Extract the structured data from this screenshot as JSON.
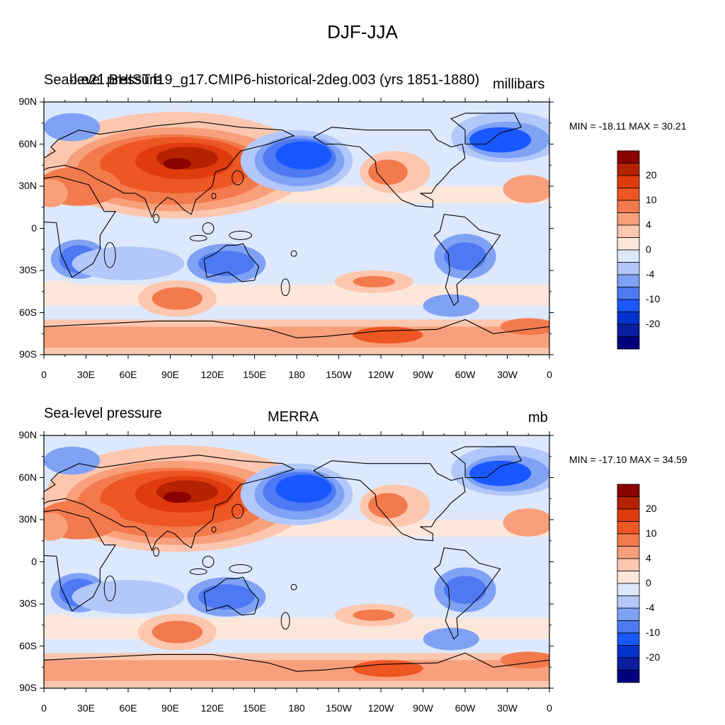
{
  "title": "DJF-JJA",
  "colors": {
    "m20": "#0a1e9e",
    "m25": "#00007f",
    "m15": "#0033cc",
    "m10": "#1958ff",
    "m7": "#4d79f2",
    "m4": "#7fa2f5",
    "m2": "#b3c8fa",
    "m0": "#dde8fd",
    "p0": "#fde7da",
    "p2": "#fcc7ae",
    "p4": "#f8a07c",
    "p7": "#f27a4d",
    "p10": "#ee5623",
    "p15": "#e03b0c",
    "p20": "#b52200",
    "p25": "#8b0000",
    "land": "#000000"
  },
  "axes": {
    "lat_labels": [
      "90N",
      "60N",
      "30N",
      "0",
      "30S",
      "60S",
      "90S"
    ],
    "lon_labels": [
      "0",
      "30E",
      "60E",
      "90E",
      "120E",
      "150E",
      "180",
      "150W",
      "120W",
      "90W",
      "60W",
      "30W",
      "0"
    ]
  },
  "colorbar": {
    "labels": [
      "20",
      "10",
      "4",
      "0",
      "-4",
      "-10",
      "-20"
    ],
    "levels": [
      -25,
      -20,
      -15,
      -10,
      -7,
      -4,
      -2,
      0,
      2,
      4,
      7,
      10,
      15,
      20,
      25
    ]
  },
  "panels": [
    {
      "left_title": "Sea-level pressure",
      "center_title": "b.e21.BHIST.f19_g17.CMIP6-historical-2deg.003 (yrs 1851-1880)",
      "right_title": "millibars",
      "minmax": "MIN = -18.11 MAX =  30.21"
    },
    {
      "left_title": "Sea-level pressure",
      "center_title": "MERRA",
      "right_title": "mb",
      "minmax": "MIN = -17.10 MAX =  34.59"
    }
  ]
}
